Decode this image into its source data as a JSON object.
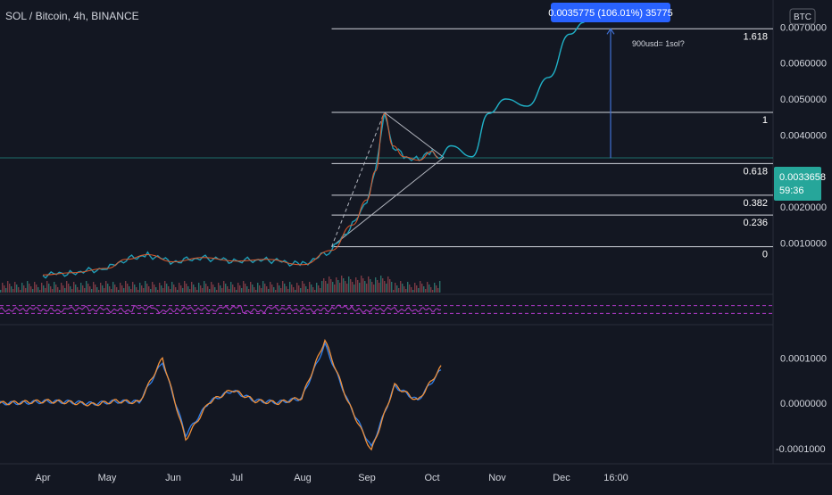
{
  "symbol_title": "SOL / Bitcoin, 4h, BINANCE",
  "currency_label": "BTC",
  "colors": {
    "background": "#131722",
    "price_line": "#1e9db7",
    "projection": "#20b2c8",
    "fib_line": "#d1d4dc",
    "rsi": "#b13ac9",
    "macd": "#f0903a",
    "signal": "#2f80ed",
    "tag_blue": "#2962ff",
    "tag_teal": "#26a69a",
    "arrow": "#3f6fd1"
  },
  "measure_label": "0.0035775 (106.01%) 35775",
  "annotation": "900usd= 1sol?",
  "last_price": "0.0033658",
  "countdown": "59:36",
  "chart_data": [
    {
      "type": "line",
      "title": "SOL / Bitcoin, 4h, BINANCE",
      "price_axis": {
        "range": [
          0.0,
          0.00713
        ],
        "ticks": [
          "0.0070000",
          "0.0060000",
          "0.0050000",
          "0.0040000",
          "0.0020000",
          "0.0010000"
        ]
      },
      "time_axis": {
        "ticks": [
          "Apr",
          "May",
          "Jun",
          "Jul",
          "Aug",
          "Sep",
          "Oct",
          "Nov",
          "Dec",
          "16:00"
        ]
      },
      "fib_levels": [
        {
          "label": "1.618",
          "value": 0.00695
        },
        {
          "label": "1",
          "value": 0.00463
        },
        {
          "label": "0.618",
          "value": 0.00321
        },
        {
          "label": "0.382",
          "value": 0.00233
        },
        {
          "label": "0.236",
          "value": 0.00178
        },
        {
          "label": "0",
          "value": 0.0009
        }
      ],
      "price_series": {
        "x": [
          "Apr 01",
          "Apr 15",
          "May 01",
          "May 10",
          "May 20",
          "Jun 01",
          "Jun 15",
          "Jul 01",
          "Jul 15",
          "Aug 01",
          "Aug 15",
          "Aug 25",
          "Sep 01",
          "Sep 05",
          "Sep 09",
          "Sep 13",
          "Sep 18",
          "Sep 25",
          "Oct 01",
          "Oct 04"
        ],
        "y": [
          0.00012,
          0.00018,
          0.0003,
          0.00055,
          0.00068,
          0.00048,
          0.0006,
          0.0005,
          0.00055,
          0.0004,
          0.0008,
          0.0015,
          0.0022,
          0.003,
          0.0046,
          0.0037,
          0.0034,
          0.0033,
          0.00355,
          0.00336
        ]
      },
      "projection": {
        "x": [
          "Oct 04",
          "Oct 10",
          "Oct 20",
          "Oct 28",
          "Nov 05",
          "Nov 15",
          "Nov 25",
          "Dec 05",
          "Dec 12"
        ],
        "y": [
          0.00336,
          0.0037,
          0.0034,
          0.0046,
          0.005,
          0.0048,
          0.0056,
          0.0068,
          0.00713
        ]
      },
      "ylabel": "BTC",
      "grid": false
    },
    {
      "type": "line",
      "title": "",
      "series": [
        {
          "values": [
            48,
            52,
            47,
            55,
            50,
            46,
            58,
            44,
            53,
            49,
            60,
            42,
            55,
            50,
            47,
            62,
            45,
            52,
            48,
            50
          ]
        }
      ],
      "dashed_levels": [
        70,
        30
      ]
    },
    {
      "type": "line",
      "title": "",
      "y_ticks": [
        "0.0001000",
        "0.0000000",
        "-0.0001000"
      ],
      "ylim": [
        -0.00013,
        0.00017
      ],
      "series": [
        {
          "values": [
            0.0,
            2e-06,
            5e-06,
            2e-06,
            -3e-06,
            5e-06,
            2e-06,
            0.0001,
            -8e-05,
            2e-06,
            3e-05,
            5e-06,
            1e-06,
            1.2e-05,
            0.00014,
            2e-06,
            -0.000105,
            4e-05,
            5e-06,
            8e-05
          ]
        },
        {
          "values": [
            0.0,
            1e-06,
            4e-06,
            3e-06,
            -1e-06,
            4e-06,
            3e-06,
            9.2e-05,
            -7e-05,
            3e-06,
            2.8e-05,
            6e-06,
            2e-06,
            1.1e-05,
            0.00013,
            3e-06,
            -9.8e-05,
            3.8e-05,
            6e-06,
            7.4e-05
          ]
        }
      ]
    }
  ]
}
